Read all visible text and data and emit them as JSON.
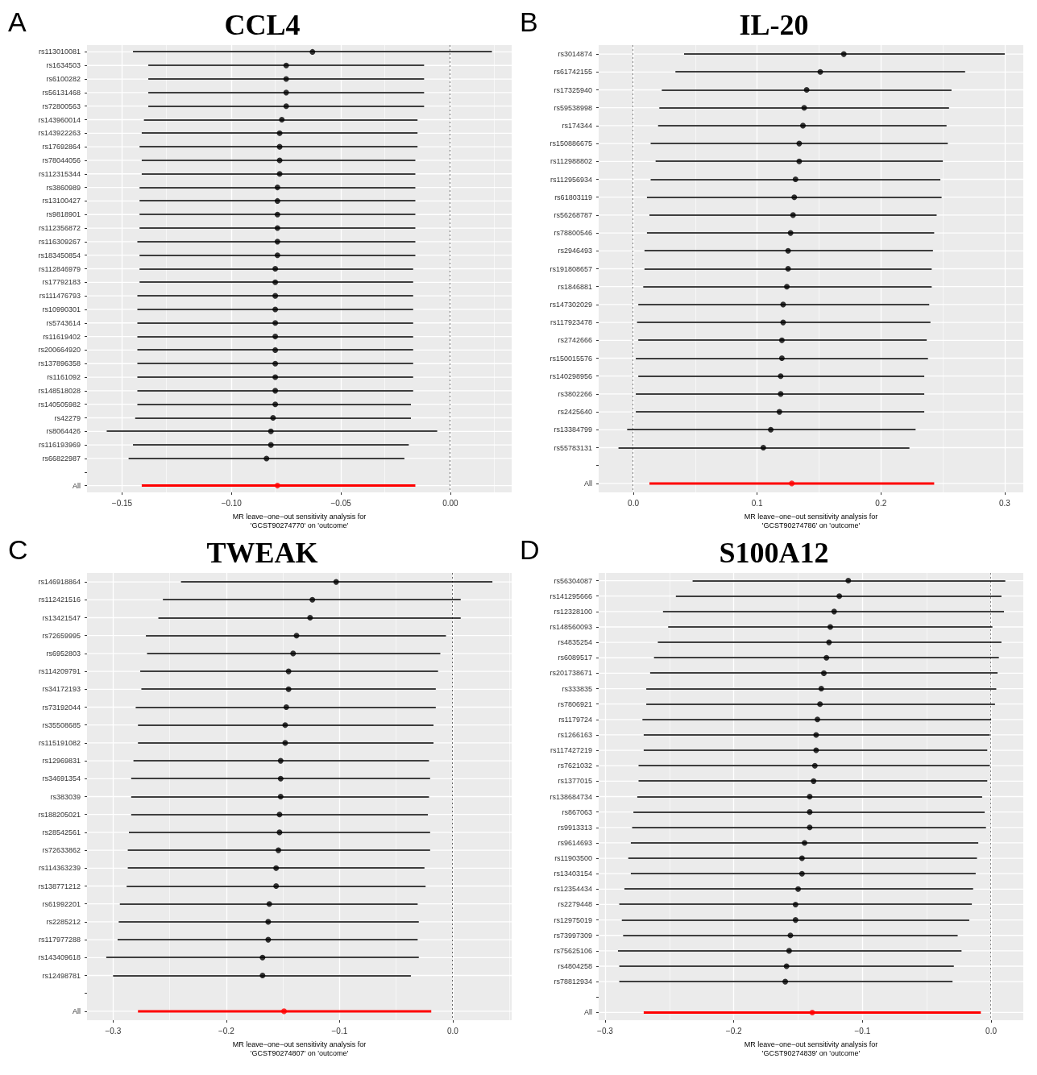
{
  "chart_data": [
    {
      "type": "scatter",
      "title": "CCL4",
      "annotations": [
        "A"
      ],
      "xlabel": "MR leave−one−out sensitivity analysis for\n'GCST90274770' on 'outcome'",
      "orientation": "horizontal",
      "grid": true,
      "marker": "circle",
      "categories": [
        "rs113010081",
        "rs1634503",
        "rs6100282",
        "rs56131468",
        "rs72800563",
        "rs143960014",
        "rs143922263",
        "rs17692864",
        "rs78044056",
        "rs112315344",
        "rs3860989",
        "rs13100427",
        "rs9818901",
        "rs112356872",
        "rs116309267",
        "rs183450854",
        "rs112846979",
        "rs17792183",
        "rs111476793",
        "rs10990301",
        "rs5743614",
        "rs11619402",
        "rs200664920",
        "rs137896358",
        "rs1161092",
        "rs148518028",
        "rs140505982",
        "rs42279",
        "rs8064426",
        "rs116193969",
        "rs66822987",
        null,
        "All"
      ],
      "series": [
        {
          "color": "#000000",
          "values": [
            -0.063,
            -0.075,
            -0.075,
            -0.075,
            -0.075,
            -0.077,
            -0.078,
            -0.078,
            -0.078,
            -0.078,
            -0.079,
            -0.079,
            -0.079,
            -0.079,
            -0.079,
            -0.079,
            -0.08,
            -0.08,
            -0.08,
            -0.08,
            -0.08,
            -0.08,
            -0.08,
            -0.08,
            -0.08,
            -0.08,
            -0.08,
            -0.081,
            -0.082,
            -0.082,
            -0.084,
            null,
            null
          ],
          "errors": [
            [
              -0.145,
              0.019
            ],
            [
              -0.138,
              -0.012
            ],
            [
              -0.138,
              -0.012
            ],
            [
              -0.138,
              -0.012
            ],
            [
              -0.138,
              -0.012
            ],
            [
              -0.14,
              -0.015
            ],
            [
              -0.141,
              -0.015
            ],
            [
              -0.142,
              -0.015
            ],
            [
              -0.141,
              -0.016
            ],
            [
              -0.141,
              -0.016
            ],
            [
              -0.142,
              -0.016
            ],
            [
              -0.142,
              -0.016
            ],
            [
              -0.142,
              -0.016
            ],
            [
              -0.142,
              -0.016
            ],
            [
              -0.143,
              -0.016
            ],
            [
              -0.142,
              -0.016
            ],
            [
              -0.142,
              -0.017
            ],
            [
              -0.142,
              -0.017
            ],
            [
              -0.143,
              -0.017
            ],
            [
              -0.143,
              -0.017
            ],
            [
              -0.143,
              -0.017
            ],
            [
              -0.143,
              -0.017
            ],
            [
              -0.143,
              -0.017
            ],
            [
              -0.143,
              -0.017
            ],
            [
              -0.143,
              -0.017
            ],
            [
              -0.143,
              -0.017
            ],
            [
              -0.143,
              -0.018
            ],
            [
              -0.144,
              -0.018
            ],
            [
              -0.157,
              -0.006
            ],
            [
              -0.145,
              -0.019
            ],
            [
              -0.147,
              -0.021
            ],
            null,
            null
          ]
        },
        {
          "color": "#ff0000",
          "values": [
            null,
            null,
            null,
            null,
            null,
            null,
            null,
            null,
            null,
            null,
            null,
            null,
            null,
            null,
            null,
            null,
            null,
            null,
            null,
            null,
            null,
            null,
            null,
            null,
            null,
            null,
            null,
            null,
            null,
            null,
            null,
            null,
            -0.079
          ],
          "errors": [
            null,
            null,
            null,
            null,
            null,
            null,
            null,
            null,
            null,
            null,
            null,
            null,
            null,
            null,
            null,
            null,
            null,
            null,
            null,
            null,
            null,
            null,
            null,
            null,
            null,
            null,
            null,
            null,
            null,
            null,
            null,
            null,
            [
              -0.141,
              -0.016
            ]
          ]
        }
      ],
      "xlim": [
        -0.166,
        0.028
      ],
      "xticks": [
        {
          "value": -0.15,
          "label": "−0.15"
        },
        {
          "value": -0.1,
          "label": "−0.10"
        },
        {
          "value": -0.05,
          "label": "−0.05"
        },
        {
          "value": 0,
          "label": "0.00"
        }
      ],
      "ref_lines": [
        {
          "axis": "x",
          "value": 0,
          "line_style": "dotted",
          "color": "#000000"
        }
      ]
    },
    {
      "type": "scatter",
      "title": "IL-20",
      "annotations": [
        "B"
      ],
      "xlabel": "MR leave−one−out sensitivity analysis for\n'GCST90274786' on 'outcome'",
      "orientation": "horizontal",
      "grid": true,
      "marker": "circle",
      "categories": [
        "rs3014874",
        "rs61742155",
        "rs17325940",
        "rs59538998",
        "rs174344",
        "rs150886675",
        "rs112988802",
        "rs112956934",
        "rs61803119",
        "rs56268787",
        "rs78800546",
        "rs2946493",
        "rs191808657",
        "rs1846881",
        "rs147302029",
        "rs117923478",
        "rs2742666",
        "rs150015576",
        "rs140298956",
        "rs3802266",
        "rs2425640",
        "rs13384799",
        "rs55783131",
        null,
        "All"
      ],
      "series": [
        {
          "color": "#000000",
          "values": [
            0.17,
            0.151,
            0.14,
            0.138,
            0.137,
            0.134,
            0.134,
            0.131,
            0.13,
            0.129,
            0.127,
            0.125,
            0.125,
            0.124,
            0.121,
            0.121,
            0.12,
            0.12,
            0.119,
            0.119,
            0.118,
            0.111,
            0.105,
            null,
            null
          ],
          "errors": [
            [
              0.041,
              0.3
            ],
            [
              0.034,
              0.268
            ],
            [
              0.023,
              0.257
            ],
            [
              0.021,
              0.255
            ],
            [
              0.02,
              0.253
            ],
            [
              0.014,
              0.254
            ],
            [
              0.018,
              0.25
            ],
            [
              0.014,
              0.248
            ],
            [
              0.011,
              0.249
            ],
            [
              0.013,
              0.245
            ],
            [
              0.011,
              0.243
            ],
            [
              0.009,
              0.242
            ],
            [
              0.009,
              0.241
            ],
            [
              0.008,
              0.241
            ],
            [
              0.004,
              0.239
            ],
            [
              0.003,
              0.24
            ],
            [
              0.004,
              0.237
            ],
            [
              0.002,
              0.238
            ],
            [
              0.004,
              0.235
            ],
            [
              0.002,
              0.235
            ],
            [
              0.002,
              0.235
            ],
            [
              -0.005,
              0.228
            ],
            [
              -0.012,
              0.223
            ],
            null,
            null
          ]
        },
        {
          "color": "#ff0000",
          "values": [
            null,
            null,
            null,
            null,
            null,
            null,
            null,
            null,
            null,
            null,
            null,
            null,
            null,
            null,
            null,
            null,
            null,
            null,
            null,
            null,
            null,
            null,
            null,
            null,
            0.128
          ],
          "errors": [
            null,
            null,
            null,
            null,
            null,
            null,
            null,
            null,
            null,
            null,
            null,
            null,
            null,
            null,
            null,
            null,
            null,
            null,
            null,
            null,
            null,
            null,
            null,
            null,
            [
              0.013,
              0.243
            ]
          ]
        }
      ],
      "xlim": [
        -0.028,
        0.315
      ],
      "xticks": [
        {
          "value": 0,
          "label": "0.0"
        },
        {
          "value": 0.1,
          "label": "0.1"
        },
        {
          "value": 0.2,
          "label": "0.2"
        },
        {
          "value": 0.3,
          "label": "0.3"
        }
      ],
      "ref_lines": [
        {
          "axis": "x",
          "value": 0,
          "line_style": "dotted",
          "color": "#000000"
        }
      ]
    },
    {
      "type": "scatter",
      "title": "TWEAK",
      "annotations": [
        "C"
      ],
      "xlabel": "MR leave−one−out sensitivity analysis for\n'GCST90274807' on 'outcome'",
      "orientation": "horizontal",
      "grid": true,
      "marker": "circle",
      "categories": [
        "rs146918864",
        "rs112421516",
        "rs13421547",
        "rs72659995",
        "rs6952803",
        "rs114209791",
        "rs34172193",
        "rs73192044",
        "rs35508685",
        "rs115191082",
        "rs12969831",
        "rs34691354",
        "rs383039",
        "rs188205021",
        "rs28542561",
        "rs72633862",
        "rs114363239",
        "rs138771212",
        "rs61992201",
        "rs2285212",
        "rs117977288",
        "rs143409618",
        "rs12498781",
        null,
        "All"
      ],
      "series": [
        {
          "color": "#000000",
          "values": [
            -0.103,
            -0.124,
            -0.126,
            -0.138,
            -0.141,
            -0.145,
            -0.145,
            -0.147,
            -0.148,
            -0.148,
            -0.152,
            -0.152,
            -0.152,
            -0.153,
            -0.153,
            -0.154,
            -0.156,
            -0.156,
            -0.162,
            -0.163,
            -0.163,
            -0.168,
            -0.168,
            null,
            null
          ],
          "errors": [
            [
              -0.24,
              0.035
            ],
            [
              -0.256,
              0.007
            ],
            [
              -0.26,
              0.007
            ],
            [
              -0.271,
              -0.006
            ],
            [
              -0.27,
              -0.011
            ],
            [
              -0.276,
              -0.013
            ],
            [
              -0.275,
              -0.015
            ],
            [
              -0.28,
              -0.015
            ],
            [
              -0.278,
              -0.017
            ],
            [
              -0.278,
              -0.017
            ],
            [
              -0.282,
              -0.021
            ],
            [
              -0.284,
              -0.02
            ],
            [
              -0.284,
              -0.021
            ],
            [
              -0.284,
              -0.022
            ],
            [
              -0.286,
              -0.02
            ],
            [
              -0.287,
              -0.02
            ],
            [
              -0.287,
              -0.025
            ],
            [
              -0.288,
              -0.024
            ],
            [
              -0.294,
              -0.031
            ],
            [
              -0.295,
              -0.03
            ],
            [
              -0.296,
              -0.031
            ],
            [
              -0.306,
              -0.03
            ],
            [
              -0.3,
              -0.037
            ],
            null,
            null
          ]
        },
        {
          "color": "#ff0000",
          "values": [
            null,
            null,
            null,
            null,
            null,
            null,
            null,
            null,
            null,
            null,
            null,
            null,
            null,
            null,
            null,
            null,
            null,
            null,
            null,
            null,
            null,
            null,
            null,
            null,
            -0.149
          ],
          "errors": [
            null,
            null,
            null,
            null,
            null,
            null,
            null,
            null,
            null,
            null,
            null,
            null,
            null,
            null,
            null,
            null,
            null,
            null,
            null,
            null,
            null,
            null,
            null,
            null,
            [
              -0.278,
              -0.019
            ]
          ]
        }
      ],
      "xlim": [
        -0.323,
        0.052
      ],
      "xticks": [
        {
          "value": -0.3,
          "label": "−0.3"
        },
        {
          "value": -0.2,
          "label": "−0.2"
        },
        {
          "value": -0.1,
          "label": "−0.1"
        },
        {
          "value": 0,
          "label": "0.0"
        }
      ],
      "ref_lines": [
        {
          "axis": "x",
          "value": 0,
          "line_style": "dotted",
          "color": "#000000"
        }
      ]
    },
    {
      "type": "scatter",
      "title": "S100A12",
      "annotations": [
        "D"
      ],
      "xlabel": "MR leave−one−out sensitivity analysis for\n'GCST90274839' on 'outcome'",
      "orientation": "horizontal",
      "grid": true,
      "marker": "circle",
      "categories": [
        "rs56304087",
        "rs141295666",
        "rs12328100",
        "rs148560093",
        "rs4835254",
        "rs6089517",
        "rs201738671",
        "rs333835",
        "rs7806921",
        "rs1179724",
        "rs1266163",
        "rs117427219",
        "rs7621032",
        "rs1377015",
        "rs138684734",
        "rs867063",
        "rs9913313",
        "rs9614693",
        "rs11903500",
        "rs13403154",
        "rs12354434",
        "rs2279448",
        "rs12975019",
        "rs73997309",
        "rs75625106",
        "rs4804258",
        "rs78812934",
        null,
        "All"
      ],
      "series": [
        {
          "color": "#000000",
          "values": [
            -0.111,
            -0.118,
            -0.122,
            -0.125,
            -0.126,
            -0.128,
            -0.13,
            -0.132,
            -0.133,
            -0.135,
            -0.136,
            -0.136,
            -0.137,
            -0.138,
            -0.141,
            -0.141,
            -0.141,
            -0.145,
            -0.147,
            -0.147,
            -0.15,
            -0.152,
            -0.152,
            -0.156,
            -0.157,
            -0.159,
            -0.16,
            null,
            null
          ],
          "errors": [
            [
              -0.232,
              0.011
            ],
            [
              -0.245,
              0.008
            ],
            [
              -0.255,
              0.01
            ],
            [
              -0.251,
              0.001
            ],
            [
              -0.259,
              0.008
            ],
            [
              -0.262,
              0.006
            ],
            [
              -0.265,
              0.005
            ],
            [
              -0.268,
              0.004
            ],
            [
              -0.268,
              0.003
            ],
            [
              -0.271,
              0.0
            ],
            [
              -0.27,
              -0.001
            ],
            [
              -0.27,
              -0.003
            ],
            [
              -0.274,
              -0.001
            ],
            [
              -0.274,
              -0.003
            ],
            [
              -0.275,
              -0.007
            ],
            [
              -0.278,
              -0.005
            ],
            [
              -0.279,
              -0.004
            ],
            [
              -0.28,
              -0.01
            ],
            [
              -0.282,
              -0.011
            ],
            [
              -0.28,
              -0.012
            ],
            [
              -0.285,
              -0.014
            ],
            [
              -0.289,
              -0.015
            ],
            [
              -0.287,
              -0.017
            ],
            [
              -0.286,
              -0.026
            ],
            [
              -0.29,
              -0.023
            ],
            [
              -0.289,
              -0.029
            ],
            [
              -0.289,
              -0.03
            ],
            null,
            null
          ]
        },
        {
          "color": "#ff0000",
          "values": [
            null,
            null,
            null,
            null,
            null,
            null,
            null,
            null,
            null,
            null,
            null,
            null,
            null,
            null,
            null,
            null,
            null,
            null,
            null,
            null,
            null,
            null,
            null,
            null,
            null,
            null,
            null,
            null,
            -0.139
          ],
          "errors": [
            null,
            null,
            null,
            null,
            null,
            null,
            null,
            null,
            null,
            null,
            null,
            null,
            null,
            null,
            null,
            null,
            null,
            null,
            null,
            null,
            null,
            null,
            null,
            null,
            null,
            null,
            null,
            null,
            [
              -0.27,
              -0.008
            ]
          ]
        }
      ],
      "xlim": [
        -0.305,
        0.025
      ],
      "xticks": [
        {
          "value": -0.3,
          "label": "−0.3"
        },
        {
          "value": -0.2,
          "label": "−0.2"
        },
        {
          "value": -0.1,
          "label": "−0.1"
        },
        {
          "value": 0,
          "label": "0.0"
        }
      ],
      "ref_lines": [
        {
          "axis": "x",
          "value": 0,
          "line_style": "dotted",
          "color": "#000000"
        }
      ]
    }
  ]
}
